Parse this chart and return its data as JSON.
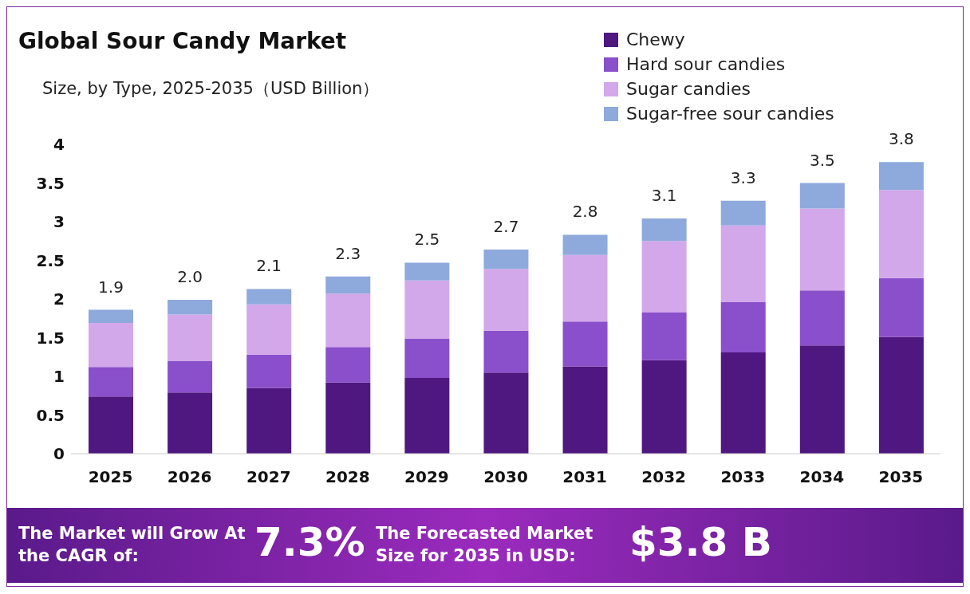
{
  "chart_data": {
    "type": "bar",
    "title": "Global Sour Candy Market",
    "subtitle": "Size, by Type, 2025-2035（USD Billion）",
    "categories": [
      "2025",
      "2026",
      "2027",
      "2028",
      "2029",
      "2030",
      "2031",
      "2032",
      "2033",
      "2034",
      "2035"
    ],
    "series": [
      {
        "name": "Chewy",
        "color": "#4f1780",
        "values": [
          0.74,
          0.79,
          0.85,
          0.92,
          0.98,
          1.05,
          1.13,
          1.21,
          1.31,
          1.4,
          1.51
        ]
      },
      {
        "name": "Hard sour candies",
        "color": "#8a4fcb",
        "values": [
          0.38,
          0.41,
          0.43,
          0.46,
          0.51,
          0.54,
          0.58,
          0.62,
          0.65,
          0.71,
          0.76
        ]
      },
      {
        "name": "Sugar candies",
        "color": "#d2a8ea",
        "values": [
          0.57,
          0.6,
          0.65,
          0.69,
          0.75,
          0.8,
          0.86,
          0.92,
          0.99,
          1.06,
          1.14
        ]
      },
      {
        "name": "Sugar-free sour candies",
        "color": "#8ea9dc",
        "values": [
          0.17,
          0.19,
          0.2,
          0.22,
          0.23,
          0.25,
          0.26,
          0.29,
          0.32,
          0.33,
          0.36
        ]
      }
    ],
    "stacked": true,
    "totals": [
      "1.9",
      "2.0",
      "2.1",
      "2.3",
      "2.5",
      "2.7",
      "2.8",
      "3.1",
      "3.3",
      "3.5",
      "3.8"
    ],
    "ylim": [
      0,
      4
    ],
    "yticks": [
      0,
      0.5,
      1,
      1.5,
      2,
      2.5,
      3,
      3.5,
      4
    ],
    "grid": false,
    "legend": "top right",
    "annotations": [
      "The Market will Grow At the CAGR of:",
      "7.3%",
      "The Forecasted Market Size for 2035 in USD:",
      "$3.8 B"
    ]
  }
}
